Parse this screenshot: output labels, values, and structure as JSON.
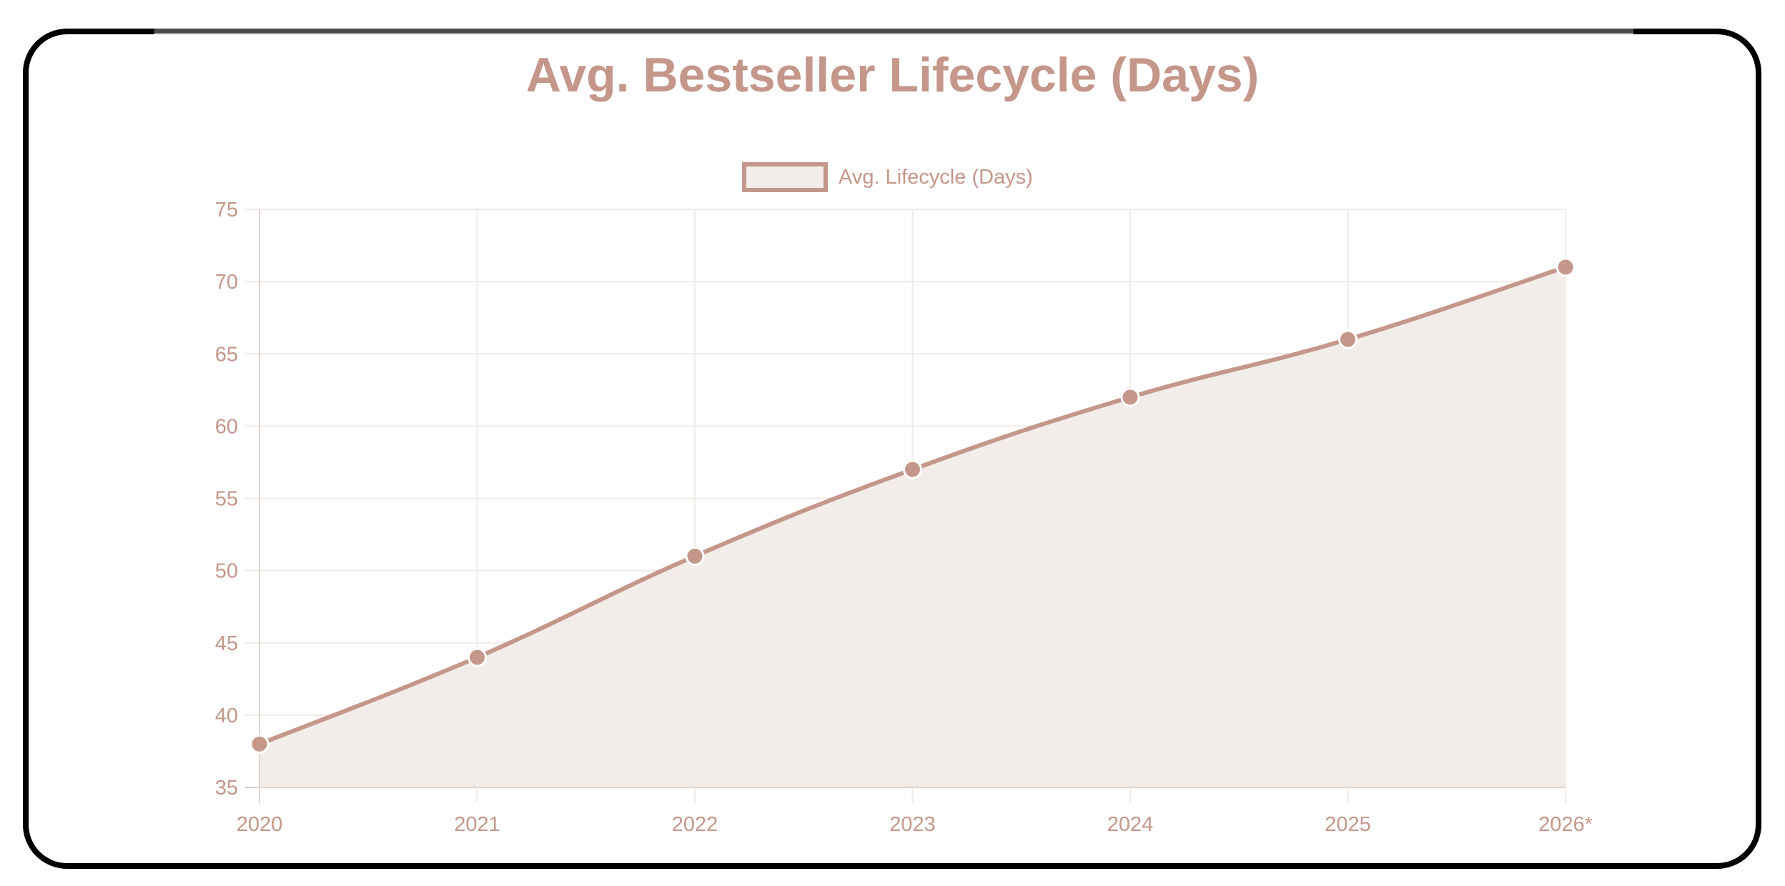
{
  "chart_data": {
    "type": "line",
    "title": "Avg. Bestseller Lifecycle (Days)",
    "xlabel": "",
    "ylabel": "",
    "categories": [
      "2020",
      "2021",
      "2022",
      "2023",
      "2024",
      "2025",
      "2026*"
    ],
    "series": [
      {
        "name": "Avg. Lifecycle (Days)",
        "values": [
          38,
          44,
          51,
          57,
          62,
          66,
          71
        ],
        "fill": true
      }
    ],
    "ylim": [
      35,
      75
    ],
    "yticks": [
      35,
      40,
      45,
      50,
      55,
      60,
      65,
      70,
      75
    ],
    "grid": true,
    "legend_position": "top"
  },
  "title": "Avg. Bestseller Lifecycle (Days)",
  "legend": {
    "label": "Avg. Lifecycle (Days)"
  },
  "colors": {
    "line": "#c4978a",
    "fill": "#f2ede9",
    "grid": "#f1ebe6",
    "axis": "#e0d4cd",
    "text": "#c4978a"
  }
}
